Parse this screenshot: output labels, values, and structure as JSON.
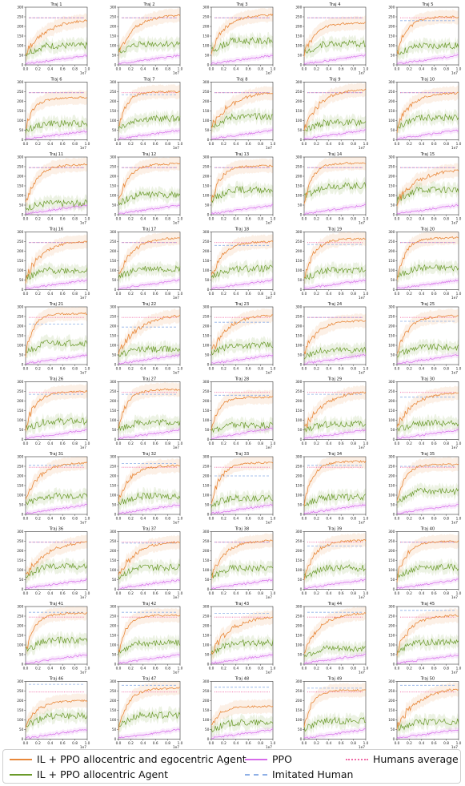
{
  "chart_data": {
    "type": "line",
    "layout_word": "10 rows x 5 columns small multiples",
    "x_ticks": [
      "0.0",
      "0.2",
      "0.4",
      "0.6",
      "0.8",
      "1.0"
    ],
    "x_range": [
      0,
      1.0
    ],
    "x_scale_label": "1e7",
    "y_ticks": [
      "0",
      "50",
      "100",
      "150",
      "200",
      "250",
      "300"
    ],
    "y_range": [
      0,
      300
    ],
    "legend_placement": "bottom",
    "series_styles": [
      {
        "name": "IL + PPO allocentric and egocentric Agent",
        "color": "#e8883a",
        "dash": "solid"
      },
      {
        "name": "IL + PPO allocentric Agent",
        "color": "#6a9a2a",
        "dash": "solid"
      },
      {
        "name": "PPO",
        "color": "#d66bea",
        "dash": "solid"
      },
      {
        "name": "Imitated Human",
        "color": "#8fb0e6",
        "dash": "dashed"
      },
      {
        "name": "Humans average",
        "color": "#f06aa6",
        "dash": "dotted"
      }
    ],
    "subplots": [
      {
        "title": "Traj 1",
        "egocentric_final": 240,
        "allocentric_final": 100,
        "ppo_final": 50,
        "imitated_human": 245,
        "humans_average": 245
      },
      {
        "title": "Traj 2",
        "egocentric_final": 262,
        "allocentric_final": 110,
        "ppo_final": 50,
        "imitated_human": 245,
        "humans_average": 245
      },
      {
        "title": "Traj 3",
        "egocentric_final": 262,
        "allocentric_final": 125,
        "ppo_final": 50,
        "imitated_human": 245,
        "humans_average": 245
      },
      {
        "title": "Traj 4",
        "egocentric_final": 220,
        "allocentric_final": 110,
        "ppo_final": 50,
        "imitated_human": 245,
        "humans_average": 245
      },
      {
        "title": "Traj 5",
        "egocentric_final": 250,
        "allocentric_final": 100,
        "ppo_final": 50,
        "imitated_human": 230,
        "humans_average": 245
      },
      {
        "title": "Traj 6",
        "egocentric_final": 220,
        "allocentric_final": 85,
        "ppo_final": 45,
        "imitated_human": 245,
        "humans_average": 245
      },
      {
        "title": "Traj 7",
        "egocentric_final": 250,
        "allocentric_final": 110,
        "ppo_final": 50,
        "imitated_human": 235,
        "humans_average": 245
      },
      {
        "title": "Traj 8",
        "egocentric_final": 255,
        "allocentric_final": 120,
        "ppo_final": 50,
        "imitated_human": 245,
        "humans_average": 245
      },
      {
        "title": "Traj 9",
        "egocentric_final": 265,
        "allocentric_final": 90,
        "ppo_final": 50,
        "imitated_human": 245,
        "humans_average": 245
      },
      {
        "title": "Traj 10",
        "egocentric_final": 245,
        "allocentric_final": 115,
        "ppo_final": 50,
        "imitated_human": 245,
        "humans_average": 245
      },
      {
        "title": "Traj 11",
        "egocentric_final": 262,
        "allocentric_final": 60,
        "ppo_final": 50,
        "imitated_human": 245,
        "humans_average": 245
      },
      {
        "title": "Traj 12",
        "egocentric_final": 265,
        "allocentric_final": 105,
        "ppo_final": 50,
        "imitated_human": 245,
        "humans_average": 245
      },
      {
        "title": "Traj 13",
        "egocentric_final": 255,
        "allocentric_final": 130,
        "ppo_final": 50,
        "imitated_human": 245,
        "humans_average": 245
      },
      {
        "title": "Traj 14",
        "egocentric_final": 268,
        "allocentric_final": 150,
        "ppo_final": 50,
        "imitated_human": 245,
        "humans_average": 245
      },
      {
        "title": "Traj 15",
        "egocentric_final": 240,
        "allocentric_final": 130,
        "ppo_final": 50,
        "imitated_human": 245,
        "humans_average": 245
      },
      {
        "title": "Traj 16",
        "egocentric_final": 255,
        "allocentric_final": 100,
        "ppo_final": 50,
        "imitated_human": 245,
        "humans_average": 245
      },
      {
        "title": "Traj 17",
        "egocentric_final": 270,
        "allocentric_final": 110,
        "ppo_final": 50,
        "imitated_human": 245,
        "humans_average": 245
      },
      {
        "title": "Traj 18",
        "egocentric_final": 250,
        "allocentric_final": 110,
        "ppo_final": 50,
        "imitated_human": 230,
        "humans_average": 245
      },
      {
        "title": "Traj 19",
        "egocentric_final": 265,
        "allocentric_final": 100,
        "ppo_final": 50,
        "imitated_human": 235,
        "humans_average": 245
      },
      {
        "title": "Traj 20",
        "egocentric_final": 270,
        "allocentric_final": 115,
        "ppo_final": 50,
        "imitated_human": 245,
        "humans_average": 245
      },
      {
        "title": "Traj 21",
        "egocentric_final": 265,
        "allocentric_final": 110,
        "ppo_final": 50,
        "imitated_human": 210,
        "humans_average": 245
      },
      {
        "title": "Traj 22",
        "egocentric_final": 265,
        "allocentric_final": 80,
        "ppo_final": 50,
        "imitated_human": 195,
        "humans_average": 245
      },
      {
        "title": "Traj 23",
        "egocentric_final": 260,
        "allocentric_final": 100,
        "ppo_final": 50,
        "imitated_human": 220,
        "humans_average": 245
      },
      {
        "title": "Traj 24",
        "egocentric_final": 230,
        "allocentric_final": 75,
        "ppo_final": 50,
        "imitated_human": 245,
        "humans_average": 245
      },
      {
        "title": "Traj 25",
        "egocentric_final": 255,
        "allocentric_final": 90,
        "ppo_final": 50,
        "imitated_human": 225,
        "humans_average": 245
      },
      {
        "title": "Traj 26",
        "egocentric_final": 250,
        "allocentric_final": 95,
        "ppo_final": 50,
        "imitated_human": 235,
        "humans_average": 245
      },
      {
        "title": "Traj 27",
        "egocentric_final": 260,
        "allocentric_final": 90,
        "ppo_final": 50,
        "imitated_human": 235,
        "humans_average": 245
      },
      {
        "title": "Traj 28",
        "egocentric_final": 220,
        "allocentric_final": 75,
        "ppo_final": 60,
        "imitated_human": 230,
        "humans_average": 245
      },
      {
        "title": "Traj 29",
        "egocentric_final": 255,
        "allocentric_final": 80,
        "ppo_final": 50,
        "imitated_human": 235,
        "humans_average": 245
      },
      {
        "title": "Traj 30",
        "egocentric_final": 245,
        "allocentric_final": 85,
        "ppo_final": 50,
        "imitated_human": 220,
        "humans_average": 245
      },
      {
        "title": "Traj 31",
        "egocentric_final": 270,
        "allocentric_final": 95,
        "ppo_final": 50,
        "imitated_human": 255,
        "humans_average": 245
      },
      {
        "title": "Traj 32",
        "egocentric_final": 255,
        "allocentric_final": 95,
        "ppo_final": 50,
        "imitated_human": 265,
        "humans_average": 245
      },
      {
        "title": "Traj 33",
        "egocentric_final": 270,
        "allocentric_final": 85,
        "ppo_final": 50,
        "imitated_human": 200,
        "humans_average": 245
      },
      {
        "title": "Traj 34",
        "egocentric_final": 275,
        "allocentric_final": 90,
        "ppo_final": 50,
        "imitated_human": 255,
        "humans_average": 245
      },
      {
        "title": "Traj 35",
        "egocentric_final": 260,
        "allocentric_final": 120,
        "ppo_final": 50,
        "imitated_human": 250,
        "humans_average": 245
      },
      {
        "title": "Traj 36",
        "egocentric_final": 255,
        "allocentric_final": 120,
        "ppo_final": 50,
        "imitated_human": 245,
        "humans_average": 245
      },
      {
        "title": "Traj 37",
        "egocentric_final": 250,
        "allocentric_final": 115,
        "ppo_final": 50,
        "imitated_human": 240,
        "humans_average": 245
      },
      {
        "title": "Traj 38",
        "egocentric_final": 255,
        "allocentric_final": 110,
        "ppo_final": 50,
        "imitated_human": 245,
        "humans_average": 245
      },
      {
        "title": "Traj 39",
        "egocentric_final": 255,
        "allocentric_final": 110,
        "ppo_final": 50,
        "imitated_human": 225,
        "humans_average": 245
      },
      {
        "title": "Traj 40",
        "egocentric_final": 250,
        "allocentric_final": 115,
        "ppo_final": 50,
        "imitated_human": 245,
        "humans_average": 245
      },
      {
        "title": "Traj 41",
        "egocentric_final": 265,
        "allocentric_final": 125,
        "ppo_final": 50,
        "imitated_human": 270,
        "humans_average": 245
      },
      {
        "title": "Traj 42",
        "egocentric_final": 255,
        "allocentric_final": 110,
        "ppo_final": 50,
        "imitated_human": 270,
        "humans_average": 245
      },
      {
        "title": "Traj 43",
        "egocentric_final": 255,
        "allocentric_final": 110,
        "ppo_final": 50,
        "imitated_human": 265,
        "humans_average": 245
      },
      {
        "title": "Traj 44",
        "egocentric_final": 270,
        "allocentric_final": 80,
        "ppo_final": 50,
        "imitated_human": 270,
        "humans_average": 245
      },
      {
        "title": "Traj 45",
        "egocentric_final": 255,
        "allocentric_final": 115,
        "ppo_final": 50,
        "imitated_human": 280,
        "humans_average": 245
      },
      {
        "title": "Traj 46",
        "egocentric_final": 200,
        "allocentric_final": 120,
        "ppo_final": 50,
        "imitated_human": 285,
        "humans_average": 245
      },
      {
        "title": "Traj 47",
        "egocentric_final": 265,
        "allocentric_final": 125,
        "ppo_final": 50,
        "imitated_human": 280,
        "humans_average": 245
      },
      {
        "title": "Traj 48",
        "egocentric_final": 170,
        "allocentric_final": 85,
        "ppo_final": 50,
        "imitated_human": 270,
        "humans_average": 245
      },
      {
        "title": "Traj 49",
        "egocentric_final": 255,
        "allocentric_final": 95,
        "ppo_final": 50,
        "imitated_human": 265,
        "humans_average": 245
      },
      {
        "title": "Traj 50",
        "egocentric_final": 270,
        "allocentric_final": 90,
        "ppo_final": 50,
        "imitated_human": 280,
        "humans_average": 245
      }
    ]
  },
  "legend": {
    "items": [
      {
        "label": "IL + PPO allocentric and egocentric Agent",
        "color": "#e8883a",
        "dash": "solid"
      },
      {
        "label": "IL + PPO allocentric Agent",
        "color": "#6a9a2a",
        "dash": "solid"
      },
      {
        "label": "PPO",
        "color": "#d66bea",
        "dash": "solid"
      },
      {
        "label": "Imitated Human",
        "color": "#8fb0e6",
        "dash": "dashed"
      },
      {
        "label": "Humans average",
        "color": "#f06aa6",
        "dash": "dotted"
      }
    ]
  }
}
